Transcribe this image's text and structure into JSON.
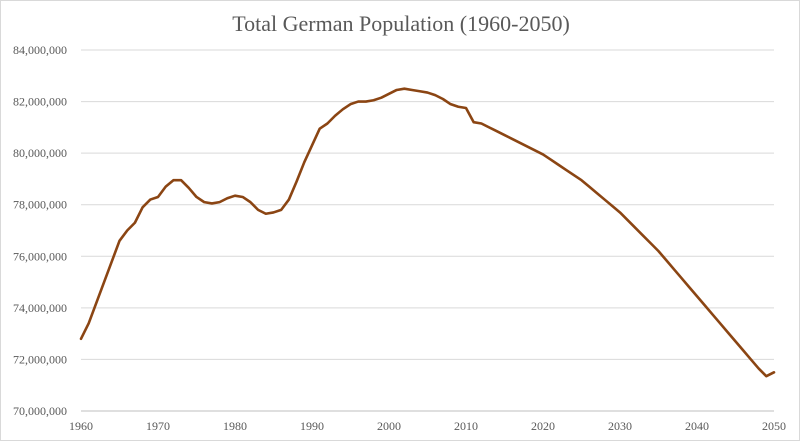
{
  "chart_data": {
    "type": "line",
    "title": "Total German Population (1960-2050)",
    "xlabel": "",
    "ylabel": "",
    "xlim": [
      1960,
      2050
    ],
    "ylim": [
      70000000,
      84000000
    ],
    "x_ticks": [
      1960,
      1970,
      1980,
      1990,
      2000,
      2010,
      2020,
      2030,
      2040,
      2050
    ],
    "x_tick_labels": [
      "1960",
      "1970",
      "1980",
      "1990",
      "2000",
      "2010",
      "2020",
      "2030",
      "2040",
      "2050"
    ],
    "y_ticks": [
      70000000,
      72000000,
      74000000,
      76000000,
      78000000,
      80000000,
      82000000,
      84000000
    ],
    "y_tick_labels": [
      "70,000,000",
      "72,000,000",
      "74,000,000",
      "76,000,000",
      "78,000,000",
      "80,000,000",
      "82,000,000",
      "84,000,000"
    ],
    "grid": true,
    "legend": "none",
    "series_color": "#8B4513",
    "series": [
      {
        "x": [
          1960,
          1961,
          1962,
          1963,
          1964,
          1965,
          1966,
          1967,
          1968,
          1969,
          1970,
          1971,
          1972,
          1973,
          1974,
          1975,
          1976,
          1977,
          1978,
          1979,
          1980,
          1981,
          1982,
          1983,
          1984,
          1985,
          1986,
          1987,
          1988,
          1989,
          1990,
          1991,
          1992,
          1993,
          1994,
          1995,
          1996,
          1997,
          1998,
          1999,
          2000,
          2001,
          2002,
          2003,
          2004,
          2005,
          2006,
          2007,
          2008,
          2009,
          2010,
          2011,
          2012,
          2013,
          2014,
          2015,
          2016,
          2017,
          2018,
          2019,
          2020,
          2021,
          2022,
          2023,
          2024,
          2025,
          2026,
          2027,
          2028,
          2029,
          2030,
          2031,
          2032,
          2033,
          2034,
          2035,
          2036,
          2037,
          2038,
          2039,
          2040,
          2041,
          2042,
          2043,
          2044,
          2045,
          2046,
          2047,
          2048,
          2049,
          2050
        ],
        "values": [
          72800000,
          73400000,
          74200000,
          75000000,
          75800000,
          76600000,
          77000000,
          77300000,
          77900000,
          78200000,
          78300000,
          78700000,
          78950000,
          78950000,
          78650000,
          78300000,
          78100000,
          78050000,
          78100000,
          78250000,
          78350000,
          78300000,
          78100000,
          77800000,
          77650000,
          77700000,
          77800000,
          78200000,
          78900000,
          79650000,
          80300000,
          80950000,
          81150000,
          81450000,
          81700000,
          81900000,
          82000000,
          82000000,
          82050000,
          82150000,
          82300000,
          82450000,
          82500000,
          82450000,
          82400000,
          82350000,
          82250000,
          82100000,
          81900000,
          81800000,
          81750000,
          81200000,
          81150000,
          81000000,
          80850000,
          80700000,
          80550000,
          80400000,
          80250000,
          80100000,
          79950000,
          79750000,
          79550000,
          79350000,
          79150000,
          78950000,
          78700000,
          78450000,
          78200000,
          77950000,
          77700000,
          77400000,
          77100000,
          76800000,
          76500000,
          76200000,
          75850000,
          75500000,
          75150000,
          74800000,
          74450000,
          74100000,
          73750000,
          73400000,
          73050000,
          72700000,
          72350000,
          72000000,
          71650000,
          71350000,
          71500000
        ]
      }
    ]
  }
}
